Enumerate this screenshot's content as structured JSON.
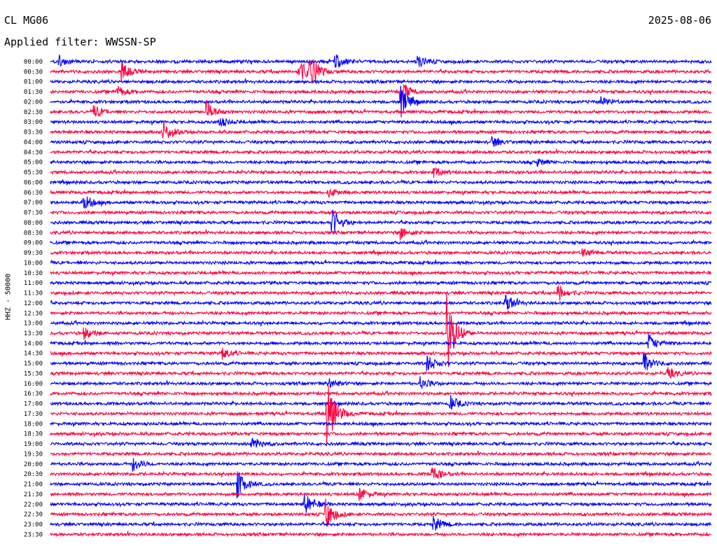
{
  "header": {
    "station": "CL MG06",
    "date": "2025-08-06",
    "filter": "Applied filter: WWSSN-SP"
  },
  "chart_data": {
    "type": "line",
    "title": "CL MG06",
    "subtitle": "Applied filter: WWSSN-SP",
    "date": "2025-08-06",
    "ylabel": "HHZ - 50000",
    "colors": [
      "#0000ff",
      "#ff0040"
    ],
    "rows": [
      {
        "label": "00:00",
        "events": [
          [
            0.013,
            0.8
          ],
          [
            0.43,
            1.2
          ],
          [
            0.556,
            0.9
          ]
        ]
      },
      {
        "label": "00:30",
        "events": [
          [
            0.108,
            1.4
          ],
          [
            0.375,
            2.2
          ],
          [
            0.392,
            2.6
          ]
        ]
      },
      {
        "label": "01:00",
        "events": []
      },
      {
        "label": "01:30",
        "events": [
          [
            0.1,
            1.0
          ],
          [
            0.529,
            2.0
          ]
        ]
      },
      {
        "label": "02:00",
        "events": [
          [
            0.53,
            2.4
          ],
          [
            0.832,
            0.8
          ]
        ]
      },
      {
        "label": "02:30",
        "events": [
          [
            0.066,
            1.0
          ],
          [
            0.236,
            1.6
          ]
        ]
      },
      {
        "label": "03:00",
        "events": [
          [
            0.255,
            0.8
          ]
        ]
      },
      {
        "label": "03:30",
        "events": [
          [
            0.171,
            1.6
          ]
        ]
      },
      {
        "label": "04:00",
        "events": [
          [
            0.668,
            0.8
          ]
        ]
      },
      {
        "label": "04:30",
        "events": []
      },
      {
        "label": "05:00",
        "events": [
          [
            0.736,
            0.6
          ]
        ]
      },
      {
        "label": "05:30",
        "events": [
          [
            0.58,
            0.8
          ]
        ]
      },
      {
        "label": "06:00",
        "events": []
      },
      {
        "label": "06:30",
        "events": [
          [
            0.42,
            0.8
          ]
        ]
      },
      {
        "label": "07:00",
        "events": [
          [
            0.05,
            1.3
          ]
        ]
      },
      {
        "label": "07:30",
        "events": []
      },
      {
        "label": "08:00",
        "events": [
          [
            0.426,
            2.3
          ]
        ]
      },
      {
        "label": "08:30",
        "events": [
          [
            0.53,
            1.0
          ]
        ]
      },
      {
        "label": "09:00",
        "events": []
      },
      {
        "label": "09:30",
        "events": [
          [
            0.805,
            0.7
          ]
        ]
      },
      {
        "label": "10:00",
        "events": []
      },
      {
        "label": "10:30",
        "events": []
      },
      {
        "label": "11:00",
        "events": []
      },
      {
        "label": "11:30",
        "events": [
          [
            0.768,
            1.4
          ]
        ]
      },
      {
        "label": "12:00",
        "events": [
          [
            0.688,
            1.6
          ]
        ]
      },
      {
        "label": "12:30",
        "events": []
      },
      {
        "label": "13:00",
        "events": []
      },
      {
        "label": "13:30",
        "events": [
          [
            0.05,
            1.0
          ],
          [
            0.6,
            6.5
          ]
        ]
      },
      {
        "label": "14:00",
        "events": [
          [
            0.905,
            1.4
          ]
        ]
      },
      {
        "label": "14:30",
        "events": [
          [
            0.26,
            1.0
          ]
        ]
      },
      {
        "label": "15:00",
        "events": [
          [
            0.57,
            1.5
          ],
          [
            0.898,
            1.6
          ]
        ]
      },
      {
        "label": "15:30",
        "events": [
          [
            0.933,
            0.9
          ]
        ]
      },
      {
        "label": "16:00",
        "events": [
          [
            0.42,
            0.9
          ],
          [
            0.56,
            1.0
          ]
        ]
      },
      {
        "label": "16:30",
        "events": []
      },
      {
        "label": "17:00",
        "events": [
          [
            0.604,
            1.4
          ]
        ]
      },
      {
        "label": "17:30",
        "events": [
          [
            0.418,
            6.0
          ]
        ]
      },
      {
        "label": "18:00",
        "events": []
      },
      {
        "label": "18:30",
        "events": []
      },
      {
        "label": "19:00",
        "events": [
          [
            0.303,
            1.4
          ]
        ]
      },
      {
        "label": "19:30",
        "events": []
      },
      {
        "label": "20:00",
        "events": [
          [
            0.125,
            1.1
          ]
        ]
      },
      {
        "label": "20:30",
        "events": [
          [
            0.577,
            1.3
          ]
        ]
      },
      {
        "label": "21:00",
        "events": [
          [
            0.283,
            2.2
          ]
        ]
      },
      {
        "label": "21:30",
        "events": [
          [
            0.467,
            1.2
          ]
        ]
      },
      {
        "label": "22:00",
        "events": [
          [
            0.384,
            2.0
          ]
        ]
      },
      {
        "label": "22:30",
        "events": [
          [
            0.416,
            2.5
          ]
        ]
      },
      {
        "label": "23:00",
        "events": [
          [
            0.579,
            1.3
          ]
        ]
      },
      {
        "label": "23:30",
        "events": []
      }
    ]
  }
}
